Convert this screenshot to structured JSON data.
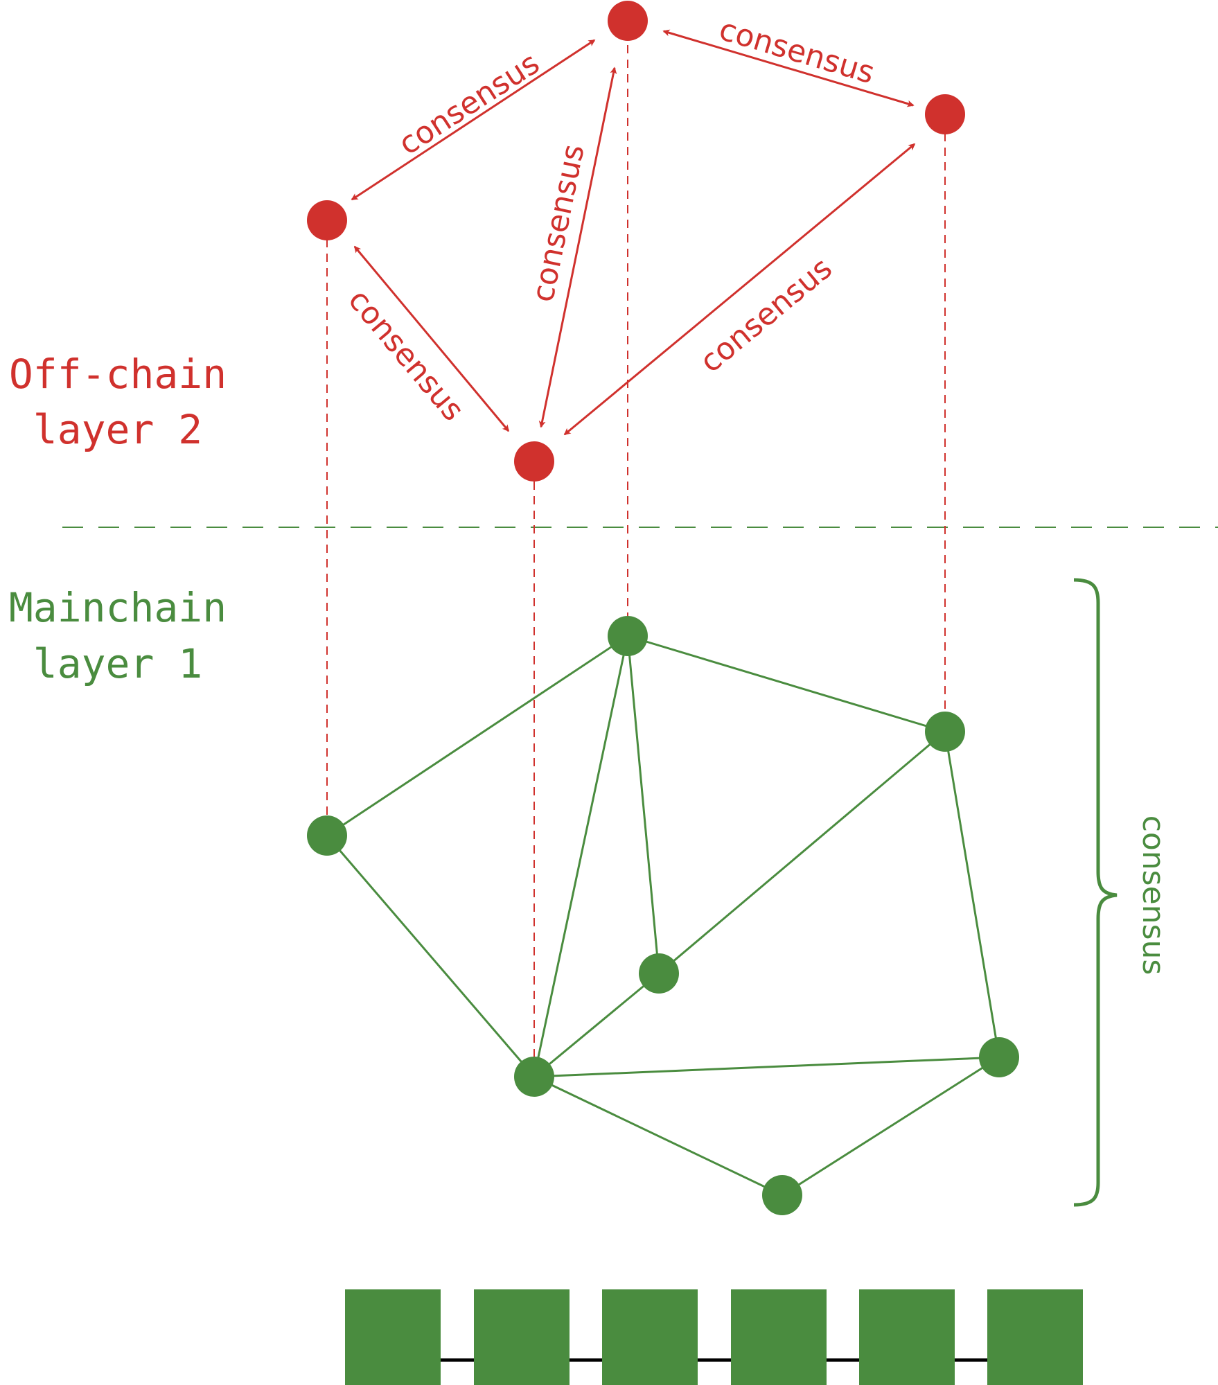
{
  "colors": {
    "offchain": "#d0312d",
    "mainchain": "#4a8c3f",
    "block": "#4a8c3f",
    "link": "#000000"
  },
  "layers": {
    "offchain_line1": "Off-chain",
    "offchain_line2": "layer 2",
    "mainchain_line1": "Mainchain",
    "mainchain_line2": "layer 1"
  },
  "consensus_label": "consensus",
  "offchain_edge_labels": [
    "consensus",
    "consensus",
    "consensus",
    "consensus",
    "consensus"
  ],
  "block_count": 6
}
